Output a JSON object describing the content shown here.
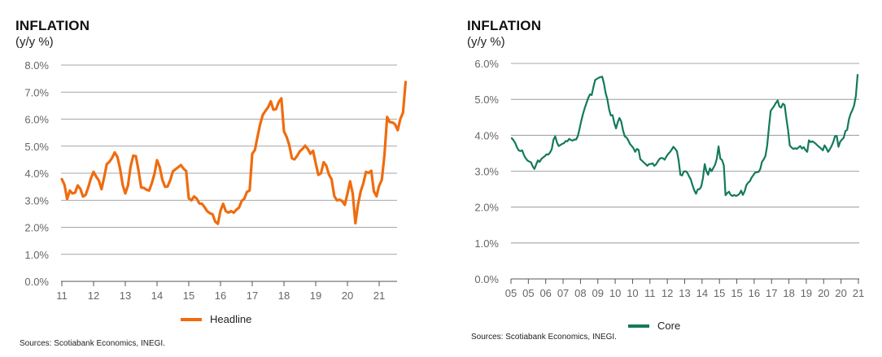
{
  "colors": {
    "headline": "#EF6C0F",
    "core": "#137A5C",
    "grid": "#8a8a8a",
    "tick_text": "#666666"
  },
  "chart_data": [
    {
      "type": "line",
      "title": "INFLATION",
      "subtitle": "(y/y %)",
      "xlabel": "",
      "ylabel": "",
      "ylim": [
        0,
        8
      ],
      "y_ticks": [
        "0.0%",
        "1.0%",
        "2.0%",
        "3.0%",
        "4.0%",
        "5.0%",
        "6.0%",
        "7.0%",
        "8.0%"
      ],
      "y_tick_values": [
        0,
        1,
        2,
        3,
        4,
        5,
        6,
        7,
        8
      ],
      "x_tick_labels": [
        "11",
        "12",
        "13",
        "14",
        "15",
        "16",
        "17",
        "18",
        "19",
        "20",
        "21"
      ],
      "x_tick_values": [
        2011,
        2012,
        2013,
        2014,
        2015,
        2016,
        2017,
        2018,
        2019,
        2020,
        2021
      ],
      "xlim": [
        2011.0,
        2021.9
      ],
      "grid": true,
      "legend_position": "bottom-center",
      "source": "Sources: Scotiabank Economics, INEGI.",
      "series": [
        {
          "name": "Headline",
          "color_key": "headline",
          "x_start": 2011.0,
          "step": 0.08333,
          "values": [
            3.78,
            3.57,
            3.04,
            3.36,
            3.25,
            3.28,
            3.55,
            3.42,
            3.14,
            3.2,
            3.48,
            3.82,
            4.05,
            3.87,
            3.73,
            3.41,
            3.85,
            4.34,
            4.42,
            4.57,
            4.77,
            4.6,
            4.18,
            3.57,
            3.25,
            3.55,
            4.25,
            4.65,
            4.63,
            4.09,
            3.47,
            3.46,
            3.39,
            3.36,
            3.62,
            3.97,
            4.48,
            4.23,
            3.76,
            3.5,
            3.51,
            3.75,
            4.07,
            4.15,
            4.22,
            4.3,
            4.17,
            4.08,
            3.07,
            3.0,
            3.14,
            3.06,
            2.88,
            2.87,
            2.74,
            2.59,
            2.52,
            2.48,
            2.21,
            2.13,
            2.61,
            2.87,
            2.6,
            2.54,
            2.6,
            2.54,
            2.65,
            2.73,
            2.97,
            3.06,
            3.31,
            3.36,
            4.72,
            4.86,
            5.35,
            5.82,
            6.16,
            6.31,
            6.44,
            6.66,
            6.35,
            6.37,
            6.63,
            6.77,
            5.55,
            5.34,
            5.04,
            4.55,
            4.51,
            4.65,
            4.81,
            4.9,
            5.02,
            4.9,
            4.72,
            4.83,
            4.37,
            3.94,
            4.0,
            4.41,
            4.28,
            3.95,
            3.78,
            3.16,
            3.0,
            3.02,
            2.97,
            2.83,
            3.24,
            3.7,
            3.25,
            2.15,
            2.84,
            3.33,
            3.62,
            4.05,
            4.01,
            4.09,
            3.33,
            3.15,
            3.54,
            3.76,
            4.67,
            6.08,
            5.89,
            5.88,
            5.81,
            5.59,
            6.0,
            6.24,
            7.37
          ]
        }
      ]
    },
    {
      "type": "line",
      "title": "INFLATION",
      "subtitle": "(y/y %)",
      "xlabel": "",
      "ylabel": "",
      "ylim": [
        0,
        6
      ],
      "y_ticks": [
        "0.0%",
        "1.0%",
        "2.0%",
        "3.0%",
        "4.0%",
        "5.0%",
        "6.0%"
      ],
      "y_tick_values": [
        0,
        1,
        2,
        3,
        4,
        5,
        6
      ],
      "x_tick_labels": [
        "05",
        "05",
        "06",
        "07",
        "08",
        "09",
        "10",
        "10",
        "11",
        "12",
        "13",
        "14",
        "15",
        "15",
        "16",
        "17",
        "18",
        "19",
        "20",
        "20",
        "21"
      ],
      "grid": true,
      "legend_position": "bottom-center",
      "source": "Sources: Scotiabank Economics, INEGI.",
      "series": [
        {
          "name": "Core",
          "color_key": "core",
          "values": [
            3.92,
            3.86,
            3.78,
            3.66,
            3.58,
            3.56,
            3.58,
            3.45,
            3.36,
            3.3,
            3.27,
            3.25,
            3.14,
            3.06,
            3.18,
            3.3,
            3.26,
            3.34,
            3.38,
            3.42,
            3.47,
            3.46,
            3.52,
            3.61,
            3.88,
            3.97,
            3.8,
            3.7,
            3.73,
            3.76,
            3.78,
            3.84,
            3.83,
            3.9,
            3.87,
            3.85,
            3.88,
            3.88,
            3.98,
            4.18,
            4.4,
            4.6,
            4.76,
            4.9,
            5.04,
            5.14,
            5.12,
            5.35,
            5.54,
            5.57,
            5.6,
            5.62,
            5.63,
            5.45,
            5.18,
            5.0,
            4.72,
            4.55,
            4.56,
            4.34,
            4.19,
            4.37,
            4.48,
            4.38,
            4.14,
            3.97,
            3.94,
            3.86,
            3.76,
            3.7,
            3.64,
            3.54,
            3.62,
            3.59,
            3.33,
            3.29,
            3.24,
            3.2,
            3.15,
            3.2,
            3.2,
            3.22,
            3.15,
            3.19,
            3.27,
            3.34,
            3.37,
            3.36,
            3.32,
            3.41,
            3.48,
            3.53,
            3.6,
            3.68,
            3.62,
            3.56,
            3.31,
            2.9,
            2.88,
            2.99,
            3.0,
            2.96,
            2.86,
            2.77,
            2.61,
            2.47,
            2.37,
            2.49,
            2.5,
            2.57,
            2.8,
            3.2,
            3.0,
            2.9,
            3.08,
            3.0,
            3.09,
            3.18,
            3.35,
            3.69,
            3.35,
            3.31,
            3.16,
            2.33,
            2.39,
            2.43,
            2.34,
            2.31,
            2.34,
            2.31,
            2.33,
            2.37,
            2.46,
            2.34,
            2.44,
            2.61,
            2.68,
            2.72,
            2.82,
            2.89,
            2.96,
            2.97,
            2.98,
            3.06,
            3.26,
            3.33,
            3.43,
            3.72,
            4.23,
            4.68,
            4.75,
            4.82,
            4.9,
            4.97,
            4.8,
            4.77,
            4.88,
            4.84,
            4.48,
            4.14,
            3.71,
            3.66,
            3.62,
            3.64,
            3.62,
            3.66,
            3.7,
            3.63,
            3.67,
            3.59,
            3.54,
            3.86,
            3.81,
            3.83,
            3.8,
            3.76,
            3.71,
            3.67,
            3.63,
            3.58,
            3.72,
            3.64,
            3.54,
            3.61,
            3.7,
            3.81,
            3.97,
            3.98,
            3.68,
            3.82,
            3.88,
            3.93,
            4.12,
            4.15,
            4.44,
            4.6,
            4.7,
            4.83,
            5.1,
            5.68
          ]
        }
      ]
    }
  ]
}
